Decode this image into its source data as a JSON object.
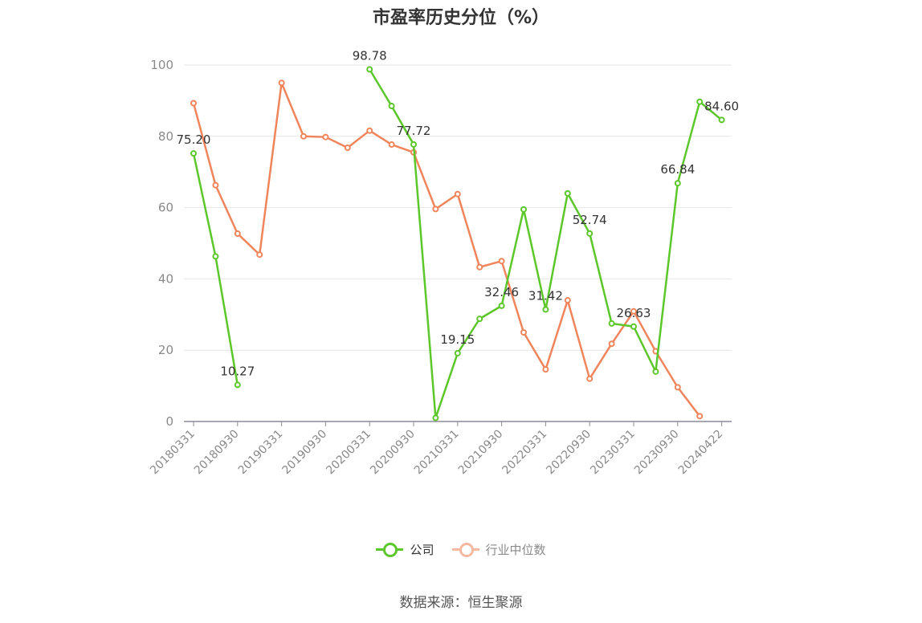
{
  "title": "市盈率历史分位（%）",
  "source": "数据来源：恒生聚源",
  "colors": {
    "company": "#5cc72a",
    "industry": "#f0855b",
    "grid": "#e6e6e6",
    "axis": "#8c8c99"
  },
  "legend": [
    {
      "key": "company",
      "label": "公司"
    },
    {
      "key": "industry",
      "label": "行业中位数"
    }
  ],
  "chart_data": {
    "type": "line",
    "title": "市盈率历史分位（%）",
    "ylim": [
      0,
      100
    ],
    "yticks": [
      0,
      20,
      40,
      60,
      80,
      100
    ],
    "grid": true,
    "legend_position": "bottom",
    "x": [
      "20180331",
      "20180630",
      "20180930",
      "20181231",
      "20190331",
      "20190630",
      "20190930",
      "20191231",
      "20200331",
      "20200630",
      "20200930",
      "20201231",
      "20210331",
      "20210630",
      "20210930",
      "20211231",
      "20220331",
      "20220630",
      "20220930",
      "20221231",
      "20230331",
      "20230630",
      "20230930",
      "20231231",
      "20240422"
    ],
    "xtick_labels": [
      "20180331",
      "20180930",
      "20190331",
      "20190930",
      "20200331",
      "20200930",
      "20210331",
      "20210930",
      "20220331",
      "20220930",
      "20230331",
      "20230930",
      "20240422"
    ],
    "series": [
      {
        "key": "company",
        "name": "公司",
        "values": [
          75.2,
          46.3,
          10.27,
          null,
          null,
          null,
          null,
          null,
          98.78,
          88.5,
          77.72,
          1.0,
          19.15,
          28.8,
          32.46,
          59.5,
          31.42,
          64.0,
          52.74,
          27.5,
          26.63,
          14.0,
          66.84,
          89.7,
          84.6
        ],
        "labeled": [
          0,
          2,
          8,
          10,
          12,
          14,
          16,
          18,
          20,
          22,
          24
        ],
        "labels": [
          "75.20",
          "10.27",
          "98.78",
          "77.72",
          "19.15",
          "32.46",
          "31.42",
          "52.74",
          "26.63",
          "66.84",
          "84.60"
        ]
      },
      {
        "key": "industry",
        "name": "行业中位数",
        "values": [
          89.3,
          66.3,
          52.7,
          46.8,
          95.0,
          80.0,
          79.8,
          76.8,
          81.6,
          77.7,
          75.5,
          59.6,
          63.8,
          43.3,
          45.0,
          25.0,
          14.6,
          34.0,
          12.0,
          21.8,
          30.9,
          19.7,
          9.6,
          1.5,
          null
        ]
      }
    ]
  }
}
